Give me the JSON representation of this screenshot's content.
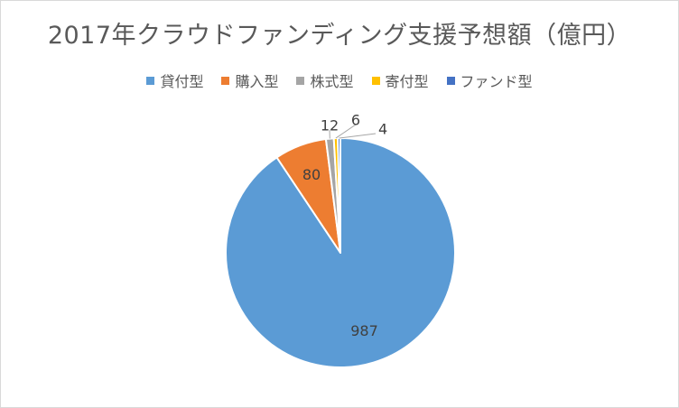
{
  "chart_data": {
    "type": "pie",
    "title": "2017年クラウドファンディング支援予想額（億円）",
    "categories": [
      "貸付型",
      "購入型",
      "株式型",
      "寄付型",
      "ファンド型"
    ],
    "values": [
      987,
      80,
      12,
      6,
      4
    ],
    "data_labels": [
      "987",
      "80",
      "12",
      "6",
      "4"
    ],
    "colors": [
      "#5b9bd5",
      "#ed7d31",
      "#a5a5a5",
      "#ffc000",
      "#4472c4"
    ],
    "legend_position": "top",
    "start_angle_deg": 0,
    "direction": "clockwise"
  }
}
